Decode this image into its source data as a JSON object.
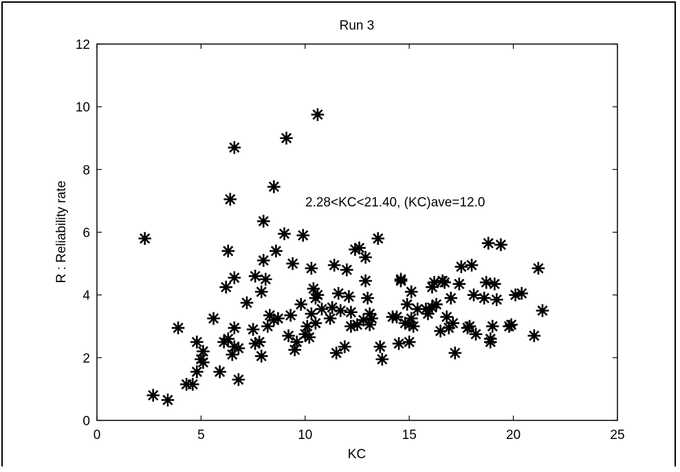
{
  "chart_data": {
    "type": "scatter",
    "title": "Run 3",
    "xlabel": "KC",
    "ylabel": "R : Reliability rate",
    "xlim": [
      0,
      25
    ],
    "ylim": [
      0,
      12
    ],
    "xticks": [
      0,
      5,
      10,
      15,
      20,
      25
    ],
    "yticks": [
      0,
      2,
      4,
      6,
      8,
      10,
      12
    ],
    "grid": false,
    "marker": "asterisk",
    "annotation": "2.28<KC<21.40, (KC)ave=12.0",
    "points": [
      [
        2.3,
        5.8
      ],
      [
        2.7,
        0.8
      ],
      [
        3.4,
        0.65
      ],
      [
        3.9,
        2.95
      ],
      [
        4.3,
        1.15
      ],
      [
        4.6,
        1.15
      ],
      [
        4.8,
        2.5
      ],
      [
        4.8,
        1.55
      ],
      [
        5.1,
        2.2
      ],
      [
        5.1,
        1.85
      ],
      [
        5.0,
        1.95
      ],
      [
        5.6,
        3.25
      ],
      [
        5.9,
        1.55
      ],
      [
        6.1,
        2.5
      ],
      [
        6.3,
        2.6
      ],
      [
        6.2,
        4.25
      ],
      [
        6.3,
        5.4
      ],
      [
        6.4,
        7.05
      ],
      [
        6.5,
        2.1
      ],
      [
        6.6,
        2.35
      ],
      [
        6.6,
        2.95
      ],
      [
        6.6,
        8.7
      ],
      [
        6.6,
        4.55
      ],
      [
        6.8,
        2.3
      ],
      [
        6.8,
        1.3
      ],
      [
        7.2,
        3.75
      ],
      [
        7.5,
        2.9
      ],
      [
        7.6,
        4.6
      ],
      [
        7.6,
        2.45
      ],
      [
        7.8,
        2.5
      ],
      [
        7.9,
        4.1
      ],
      [
        7.9,
        2.05
      ],
      [
        8.0,
        5.1
      ],
      [
        8.0,
        6.35
      ],
      [
        8.1,
        4.5
      ],
      [
        8.2,
        3.0
      ],
      [
        8.3,
        3.35
      ],
      [
        8.5,
        3.2
      ],
      [
        8.5,
        7.45
      ],
      [
        8.6,
        5.4
      ],
      [
        8.7,
        3.25
      ],
      [
        9.0,
        5.95
      ],
      [
        9.1,
        9.0
      ],
      [
        9.2,
        2.7
      ],
      [
        9.3,
        3.35
      ],
      [
        9.4,
        5.0
      ],
      [
        9.5,
        2.25
      ],
      [
        9.6,
        2.5
      ],
      [
        9.8,
        3.7
      ],
      [
        9.9,
        5.9
      ],
      [
        10.0,
        2.75
      ],
      [
        10.1,
        3.0
      ],
      [
        10.2,
        2.65
      ],
      [
        10.3,
        4.85
      ],
      [
        10.3,
        3.4
      ],
      [
        10.4,
        4.2
      ],
      [
        10.5,
        3.1
      ],
      [
        10.5,
        3.9
      ],
      [
        10.6,
        9.75
      ],
      [
        10.6,
        4.0
      ],
      [
        10.8,
        3.55
      ],
      [
        11.2,
        3.25
      ],
      [
        11.3,
        3.6
      ],
      [
        11.4,
        4.95
      ],
      [
        11.5,
        2.15
      ],
      [
        11.6,
        4.05
      ],
      [
        11.7,
        3.5
      ],
      [
        11.9,
        2.35
      ],
      [
        12.0,
        4.8
      ],
      [
        12.1,
        3.95
      ],
      [
        12.2,
        3.45
      ],
      [
        12.2,
        3.0
      ],
      [
        12.4,
        5.45
      ],
      [
        12.5,
        3.05
      ],
      [
        12.6,
        5.5
      ],
      [
        12.8,
        3.2
      ],
      [
        12.9,
        4.45
      ],
      [
        12.9,
        5.2
      ],
      [
        13.0,
        3.9
      ],
      [
        13.1,
        3.4
      ],
      [
        13.1,
        3.05
      ],
      [
        13.2,
        3.25
      ],
      [
        13.5,
        5.8
      ],
      [
        13.6,
        2.35
      ],
      [
        13.7,
        1.95
      ],
      [
        14.2,
        3.3
      ],
      [
        14.4,
        3.3
      ],
      [
        14.5,
        2.45
      ],
      [
        14.6,
        4.45
      ],
      [
        14.6,
        4.5
      ],
      [
        14.8,
        3.1
      ],
      [
        14.9,
        3.7
      ],
      [
        15.0,
        2.5
      ],
      [
        15.0,
        3.05
      ],
      [
        15.1,
        3.25
      ],
      [
        15.1,
        4.1
      ],
      [
        15.2,
        3.0
      ],
      [
        15.4,
        3.55
      ],
      [
        15.8,
        3.55
      ],
      [
        15.9,
        3.4
      ],
      [
        16.1,
        3.6
      ],
      [
        16.1,
        4.25
      ],
      [
        16.2,
        4.4
      ],
      [
        16.3,
        3.7
      ],
      [
        16.5,
        2.85
      ],
      [
        16.6,
        4.45
      ],
      [
        16.7,
        4.4
      ],
      [
        16.8,
        3.3
      ],
      [
        16.9,
        2.95
      ],
      [
        17.0,
        3.9
      ],
      [
        17.1,
        3.1
      ],
      [
        17.2,
        2.15
      ],
      [
        17.4,
        4.35
      ],
      [
        17.5,
        4.9
      ],
      [
        17.8,
        2.95
      ],
      [
        17.9,
        3.0
      ],
      [
        18.0,
        4.95
      ],
      [
        18.1,
        4.0
      ],
      [
        18.2,
        2.75
      ],
      [
        18.6,
        3.9
      ],
      [
        18.7,
        4.4
      ],
      [
        18.8,
        5.65
      ],
      [
        18.9,
        2.5
      ],
      [
        18.9,
        2.6
      ],
      [
        19.0,
        3.0
      ],
      [
        19.1,
        4.35
      ],
      [
        19.2,
        3.85
      ],
      [
        19.4,
        5.6
      ],
      [
        19.8,
        3.0
      ],
      [
        19.9,
        3.05
      ],
      [
        20.1,
        4.0
      ],
      [
        20.4,
        4.05
      ],
      [
        21.0,
        2.7
      ],
      [
        21.2,
        4.85
      ],
      [
        21.4,
        3.5
      ]
    ]
  }
}
